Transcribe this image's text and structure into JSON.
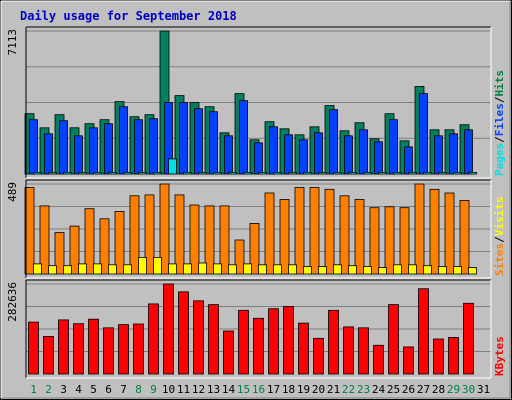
{
  "chart_data": {
    "type": "bar",
    "title": "Daily usage for September 2018",
    "days": [
      "1",
      "2",
      "3",
      "4",
      "5",
      "6",
      "7",
      "8",
      "9",
      "10",
      "11",
      "12",
      "13",
      "14",
      "15",
      "16",
      "17",
      "18",
      "19",
      "20",
      "21",
      "22",
      "23",
      "24",
      "25",
      "26",
      "27",
      "28",
      "29",
      "30",
      "31"
    ],
    "weekend_days": [
      "1",
      "2",
      "8",
      "9",
      "15",
      "16",
      "22",
      "23",
      "29",
      "30"
    ],
    "panels": [
      {
        "id": "hits",
        "ymax_label": "7113",
        "ymax": 7113,
        "legend": [
          {
            "text": "Pages",
            "color": "#00e0e0"
          },
          {
            "text": "/",
            "color": "#000000"
          },
          {
            "text": "Files",
            "color": "#0040ff"
          },
          {
            "text": "/",
            "color": "#000000"
          },
          {
            "text": "Hits",
            "color": "#008040"
          }
        ],
        "series": [
          {
            "name": "Hits",
            "color": "#008060",
            "values": [
              3000,
              2300,
              2950,
              2300,
              2500,
              2700,
              3600,
              2850,
              2950,
              7113,
              3900,
              3550,
              3350,
              2050,
              4000,
              1700,
              2600,
              2250,
              1950,
              2350,
              3400,
              2150,
              2550,
              1750,
              3000,
              1650,
              4350,
              2200,
              2200,
              2450,
              0
            ]
          },
          {
            "name": "Files",
            "color": "#0040ff",
            "values": [
              2700,
              2000,
              2650,
              1900,
              2300,
              2500,
              3350,
              2700,
              2750,
              3550,
              3550,
              3250,
              3100,
              1900,
              3650,
              1550,
              2350,
              1950,
              1700,
              2050,
              3200,
              1900,
              2200,
              1600,
              2700,
              1350,
              4000,
              1900,
              2000,
              2200,
              0
            ]
          },
          {
            "name": "Pages",
            "color": "#00e0e0",
            "values": [
              80,
              80,
              80,
              80,
              80,
              80,
              80,
              80,
              80,
              750,
              80,
              80,
              80,
              80,
              80,
              80,
              80,
              80,
              80,
              80,
              80,
              80,
              80,
              80,
              80,
              80,
              80,
              80,
              80,
              80,
              0
            ]
          }
        ]
      },
      {
        "id": "visits",
        "ymax_label": "489",
        "ymax": 489,
        "legend": [
          {
            "text": "Sites",
            "color": "#ff8000"
          },
          {
            "text": "/",
            "color": "#000000"
          },
          {
            "text": "Visits",
            "color": "#ffff00"
          }
        ],
        "series": [
          {
            "name": "Visits",
            "color": "#ff8000",
            "values": [
              470,
              370,
              225,
              260,
              355,
              300,
              340,
              425,
              430,
              489,
              430,
              375,
              370,
              370,
              185,
              275,
              440,
              405,
              470,
              470,
              460,
              425,
              405,
              360,
              365,
              360,
              489,
              460,
              440,
              400,
              0
            ]
          },
          {
            "name": "Sites",
            "color": "#ffff00",
            "values": [
              55,
              45,
              45,
              55,
              55,
              50,
              50,
              90,
              90,
              55,
              55,
              60,
              55,
              50,
              55,
              50,
              50,
              50,
              40,
              40,
              50,
              45,
              40,
              35,
              50,
              50,
              45,
              40,
              40,
              35,
              0
            ]
          }
        ]
      },
      {
        "id": "kbytes",
        "ymax_label": "282636",
        "ymax": 282636,
        "legend": [
          {
            "text": "KBytes",
            "color": "#ff0000"
          }
        ],
        "series": [
          {
            "name": "KBytes",
            "color": "#ff0000",
            "values": [
              163000,
              118000,
              170000,
              158000,
              172000,
              145000,
              155000,
              157000,
              220000,
              282636,
              258000,
              230000,
              218000,
              135000,
              200000,
              175000,
              205000,
              212000,
              160000,
              112000,
              200000,
              148000,
              145000,
              90000,
              218000,
              85000,
              268000,
              110000,
              115000,
              222000,
              0
            ]
          }
        ]
      }
    ]
  }
}
